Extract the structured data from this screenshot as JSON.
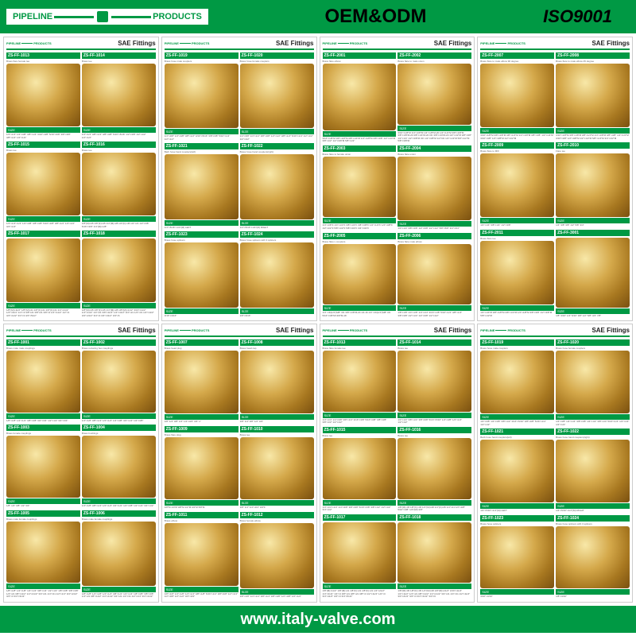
{
  "header": {
    "logo_left": "PIPELINE",
    "logo_right": "PRODUCTS",
    "center": "OEM&ODM",
    "right": "ISO9001"
  },
  "footer": {
    "url": "www.italy-valve.com"
  },
  "panel_title": "SAE Fittings",
  "panel_logo_left": "PIPELINE",
  "panel_logo_right": "PRODUCTS",
  "size_label": "SIZE",
  "colors": {
    "brand": "#009944",
    "brass_light": "#f8e8a8",
    "brass_mid": "#d4a84a",
    "brass_dark": "#a87820"
  },
  "panels": [
    {
      "items": [
        {
          "sku": "ZS-FF-1013",
          "desc": "Brass flare female tee",
          "sizes": "1/4\"×1/4\" 1/4\"×3/8\" 3/8\"×1/4\" 3/16\"×3/8\" 5/16\"×3/8\" 3/8\"×3/8\" 3/8\"×1/2\" 1/2\"×1/2\""
        },
        {
          "sku": "ZS-FF-1014",
          "desc": "Brass tee",
          "sizes": "1/4\"×1/4\" 3/8\"×1/4\" 3/8\"×3/8\" 5/16\"×5/16\" 1/2\"×3/8\" 1/2\"×1/2\" 1/2\"×1/2\""
        },
        {
          "sku": "ZS-FF-1015",
          "desc": "Brass tee",
          "sizes": "1/4\"×1/4\"×1/4\" 1/4\"×3/8\" 3/8\"×3/8\" 5/16\"×3/8\" 3/8\"×1/2\" 1/2\"×1/2\" 3/4\"×1/2\""
        },
        {
          "sku": "ZS-FF-1016",
          "desc": "Brass tee",
          "sizes": "1/8\"(M)×45 1/8\"(F)×45 1/4\"(M)×28 1/4\"(F)×45 1/4\"×21 1/2\"×3/8\" 5/16\"×3/8\" 1/4\"(M)×1/8\""
        },
        {
          "sku": "ZS-FF-1017",
          "desc": "",
          "sizes": "1/8\"(M)×11/2\" 1/8\"(M)×21 1/8\"(F)×21 1/8\"(F)×21 1/4\"×21/2\" 1/4\"×31/4\" 1/4\"×3 3/8\"×21 3/8\"×21 3/8\"×3 1/2\"×11/2\" 1/2\"×3 3/4\"×11/2\" 3/4\"×3 3/4\"×51/2\""
        },
        {
          "sku": "ZS-FF-1018",
          "desc": "",
          "sizes": "1/8\"(M)×45 1/8\"(F)×45 1/4\"(M)×28 1/8\"(M)×21/2\" 3/16\"×11/2\" 1/4\"×11/2\" 1/4\"×21 3/8\"×11/2\" 1/4\"×41/2\" 3/4\"×21 1/4\"×31 1/2\"×11/2\" 3/4\"×21/2\" 3/4\"×3 3/4\"×31/2\" 3/4\"×6"
        }
      ]
    },
    {
      "items": [
        {
          "sku": "ZS-FF-1019",
          "desc": "Brass hose male couplers",
          "sizes": "1/4\"×3/8\" 1/4\"×3/8\" 3/8\"×1/2\" 3/16\"×5/16\" 3/8\"×3/8\" 5/16\"×1/4\" 1/2\"×1/2\""
        },
        {
          "sku": "ZS-FF-1020",
          "desc": "Brass hose female couplers",
          "sizes": "1/4\"×3/8\" 1/4\"×1/4\" 3/8\"×3/8\" 1/4\"×1/2\" 3/8\"×1/4\" 5/16\"×1/4\" 1/2\"×1/2\" 1/2\"×1/2\""
        },
        {
          "sku": "ZS-FF-1021",
          "desc": "Barb hose hand couplers(left)",
          "sizes": "1/4\"×5/16\"×1/4\"(M) LEFT"
        },
        {
          "sku": "ZS-FF-1022",
          "desc": "Brass hose hand couplers(right)",
          "sizes": "1/4\"×5/16\"×1/4\"(M) RIGHT"
        },
        {
          "sku": "ZS-FF-1023",
          "desc": "Brass hose splicers",
          "sizes": "3/16\"×3/16\""
        },
        {
          "sku": "ZS-FF-1024",
          "desc": "Brass hose splicers with 3 splicers",
          "sizes": "1/8\"×3/16\""
        }
      ]
    },
    {
      "items": [
        {
          "sku": "ZS-FF-2001",
          "desc": "Brass flare elbow",
          "sizes": "3/16\"×1/8\"M 3/8\"×1/8\"M 3/8\"×1/4\"M 1/4\"×1/8\"M 3/8\"×3/8\" 1/2\"×1/4\"M 3/8\"×1/2\" 1/2\"×3/8\"M 5/8\"×1/2\""
        },
        {
          "sku": "ZS-FF-2002",
          "desc": "Brass flare to male union",
          "sizes": "3/16\"×1/8\"M 1/4\"×1/8\"M 1/4\"×1/8\"M-20 1/4\"×1/4\"M 3/8\"×1/8\"M 3/8\"×1/8\"M-20 3/8\"×1/4\"M-20 OK 3/8\"×1/4\"M-20 1/2\"×1/2\"M 3/8\"×3/8\" 1/2\"×1/4\" 1/2\"×3/8\"M OK 1/2\"×3/8\"M 1/2\"CD 1/2\"×1/2\"M 5/8\"×1/2\"M 5/8\"×3/8\"M"
        },
        {
          "sku": "ZS-FF-2003",
          "desc": "Brass flare to female union",
          "sizes": "1/4\"×1/8\"F 1/4\"×1/4\"F 3/8\"×1/4\"F 3/8\"×3/8\"F 1/2\"×1/4\"F 1/2\"×3/8\"F 1/2\"×1/2\"F 5/8\"×1/2\"F 5/8\"×3/4\"F 3/4\"×3/4\"F"
        },
        {
          "sku": "ZS-FF-2004",
          "desc": "Brass flare union",
          "sizes": "1/4\"×1/4\" 3/8\"×3/8\" 1/2\"×3/8\" 1/2\"×1/2\" 5/8\"×5/8\" 3/4\"×3/4\""
        },
        {
          "sku": "ZS-FF-2005",
          "desc": "Brass flare L couplers",
          "sizes": "1/4\" CD(1/4\")M8\" OK 3/8\"×1/8\"M-20 1/4.16 1/4\" CD(1/4\")M8\" OK 5/16\"×3/8\"M×3/8\"M-18"
        },
        {
          "sku": "ZS-FF-2006",
          "desc": "Brass flare male elbow",
          "sizes": "1/8\"×1/8\" 1/4\"×1/8\" 1/4\"×1/4\" 3/16\"×1/8\" 5/16\"×1/4\" 3/8\"×1/4\" 3/8\"×3/8\" 1/2\"×1/4\" 1/2\"×3/8\" 1/2\"×1/2\""
        }
      ]
    },
    {
      "items": [
        {
          "sku": "ZS-FF-2007",
          "desc": "Brass flare to male elbow 90 degree",
          "sizes": "3/16\"×1/8\"M 3/8\"×1/8\"M 3/8\"×1/4\"M 1/4\"×1/8\"M 3/8\"×3/8\" 1/2\"×1/4\"M 3/16\"×3/8\" 1/2\"×3/8\"M 1/2\"×1/2\"M"
        },
        {
          "sku": "ZS-FF-2008",
          "desc": "Brass flare to male elbow 45 degree",
          "sizes": "3/16\"×1/8\"M 3/8\"×1/8\"M 3/8\"×1/4\"M 1/4\"×1/8\"M 3/8\"×3/8\" 1/2\"×1/4\"M 3/16\"×3/8\" 1/2\"×3/8\"M 1/2\"×1/2\"M 5/8\"×1/2\"M 3/4\"×1/2\"M"
        },
        {
          "sku": "ZS-FF-2009",
          "desc": "Brass flare to M/F",
          "sizes": "1/4\"×1/4\" 3/8\"×1/4\" 1/2\"×3/8\""
        },
        {
          "sku": "ZS-FF-2010",
          "desc": "Flare tee",
          "sizes": "1/4\" 3/8\" 3/8\" 1/2\" 5/8\" 3/4\""
        },
        {
          "sku": "ZS-FF-2011",
          "desc": "Brass flare tee",
          "sizes": "1/4\"×1/4\"M 3/8\"×1/8\"M 3/8\"×1/4\"M 1/4\"×1/8\"M 3/8\"×3/8\" 1/2\"×3/8\"M 5/8\"×1/2\"M"
        },
        {
          "sku": "ZS-FF-3001",
          "desc": "",
          "sizes": "1/8\" 3/16\" 1/4\" 5/16\" 3/8\" 1/2\" 5/8\" 3/4\" 7/8\""
        }
      ]
    },
    {
      "items": [
        {
          "sku": "ZS-FF-1001",
          "desc": "Brass male male couplings",
          "sizes": "1/8\"×1/8\" 1/4\"×1/4\" 3/8\"×3/8\" 3/4\"×3/4\" 1/2\"×1/2\" 3/4\"×3/4\""
        },
        {
          "sku": "ZS-FF-1002",
          "desc": "Brass reducing hex couplings",
          "sizes": "1/4\"×1/8\" 3/8\"×1/4\" 1/2\"×1/4\" 1/2\"×3/8\" 3/4\"×1/2\" 1/4\"×3/8\""
        },
        {
          "sku": "ZS-FF-1003",
          "desc": "Brass female couplings",
          "sizes": "1/8\" 1/4\" 3/8\" 1/2\" 3/4\""
        },
        {
          "sku": "ZS-FF-1004",
          "desc": "Brass bushings",
          "sizes": "1/4\"×1/8\" 3/8\"×1/4\" 1/2\"×1/4\" 3/4\"×1/2\" 1/2\"×3/8\" 1/2\"×1/4\" 3/4\"×1/2\""
        },
        {
          "sku": "ZS-FF-1005",
          "desc": "Brass male female couplings",
          "sizes": "1/8\"×1/8\" 1/4\"×1/8\" 1/4\"×1/4\" 3/8\"×1/4\" 1/2\"×1/4\" 1/8\"×3/8\" 3/8\"×3/8\" 1/4\"×21 3/8\"×11/2\" 1/4\"×41/2\" 3/4\"×21 1/4\"×31 1/2\"×1/4\" 3/4\"×21/2\" 3/4\"×3 3/4\"×31/2\""
        },
        {
          "sku": "ZS-FF-1006",
          "desc": "Brass male female couplings",
          "sizes": "1/8\"×1/8\" 1/4\"×1/8\" 1/4\"×1/4\" 3/8\"×1/4\" 1/2\"×1/4\" 1/8\"×3/8\" 3/8\"×3/8\" 1/4\"×21 3/8\"×11/2\" 1/4\"×41/2\" 3/4\"×21 1/4\"×31 1/2\"×1/4\" 3/4\"×21/2\""
        }
      ]
    },
    {
      "items": [
        {
          "sku": "ZS-FF-1007",
          "desc": "Brass head plug",
          "sizes": "1/8\" 1/4\" 3/8\" 1/2\" 1/4\"×3/4\" 3/4\" 1\""
        },
        {
          "sku": "ZS-FF-1008",
          "desc": "Brass head cap",
          "sizes": "1/8\" 1/4\" 3/8\" 1/2\" 3/4\""
        },
        {
          "sku": "ZS-FF-1009",
          "desc": "Brass flare plug",
          "sizes": "1/8\"M 1/4\"M 3/8\"M 1/2\"M 3/4\"M 5/8\"M"
        },
        {
          "sku": "ZS-FF-1010",
          "desc": "Brass tee",
          "sizes": "1/8\" 1/4\" 1/4\"×3/4\" 3/4\"F"
        },
        {
          "sku": "ZS-FF-1011",
          "desc": "Brass elbow",
          "sizes": "1/8\"×1/8\" 1/4\"×1/8\" 1/4\"×1/4\" 3/8\"×1/8\" 5/16\"×1/4\" 3/8\"×3/8\" 1/2\"×1/4\" 1/2\"×3/8\" 1/2\"×1/2\" 3/4\"×3/4\""
        },
        {
          "sku": "ZS-FF-1012",
          "desc": "Brass female elbow",
          "sizes": "1/8\"×1/8\" 1/4\"×1/4\" 3/8\"×1/4\" 3/8\"×3/8\" 1/2\"×3/8\" 1/2\"×1/2\""
        }
      ]
    },
    {
      "items": [
        {
          "sku": "ZS-FF-1013",
          "desc": "Brass flare female tee",
          "sizes": "1/4\"×1/4\" 1/4\"×3/8\" 3/8\"×1/4\" 3/16\"×3/8\" 5/16\"×3/8\" 3/8\"×3/8\" 3/8\"×1/2\" 1/2\"×1/2\""
        },
        {
          "sku": "ZS-FF-1014",
          "desc": "Brass tee",
          "sizes": "1/4\"×1/4\" 3/8\"×1/4\" 3/8\"×3/8\" 5/16\"×5/16\" 1/2\"×3/8\" 1/2\"×1/2\" 1/2\"×1/2\""
        },
        {
          "sku": "ZS-FF-1015",
          "desc": "Brass tee",
          "sizes": "1/4\"×1/4\"×1/4\" 1/4\"×3/8\" 3/8\"×3/8\" 5/16\"×3/8\" 3/8\"×1/2\" 1/2\"×1/2\" 3/4\"×1/2\""
        },
        {
          "sku": "ZS-FF-1016",
          "desc": "Brass tee",
          "sizes": "1/8\"(M)×45 1/8\"(F)×45 1/4\"(M)×28 1/4\"(F)×45 1/4\"×21 1/2\"×3/8\" 5/16\"×3/8\" 1/4\"(M)×1/8\""
        },
        {
          "sku": "ZS-FF-1017",
          "desc": "",
          "sizes": "1/8\"(M)×11/2\" 1/8\"(M)×21 1/8\"(F)×21 1/8\"(F)×21 1/4\"×21/2\" 1/4\"×31/4\" 1/4\"×3 3/8\"×21 3/8\"×21 3/8\"×3 1/2\"×11/2\" 1/2\"×3 3/4\"×11/2\" 3/4\"×3 3/4\"×51/2\""
        },
        {
          "sku": "ZS-FF-1018",
          "desc": "",
          "sizes": "1/8\"(M)×45 1/8\"(F)×45 1/4\"(M)×28 1/8\"(M)×21/2\" 3/16\"×11/2\" 1/4\"×11/2\" 1/4\"×21 3/8\"×11/2\" 1/4\"×41/2\" 3/4\"×21 1/4\"×31 1/2\"×11/2\" 3/4\"×21/2\" 3/4\"×3 3/4\"×31/2\" 3/4\"×6"
        }
      ]
    },
    {
      "items": [
        {
          "sku": "ZS-FF-1019",
          "desc": "Brass hose male couplers",
          "sizes": "1/4\"×3/8\" 1/4\"×3/8\" 3/8\"×1/2\" 3/16\"×5/16\" 3/8\"×3/8\" 5/16\"×1/4\" 1/2\"×1/2\""
        },
        {
          "sku": "ZS-FF-1020",
          "desc": "Brass hose female couplers",
          "sizes": "1/4\"×3/8\" 1/4\"×1/4\" 3/8\"×3/8\" 1/4\"×1/2\" 3/8\"×1/4\" 5/16\"×1/4\" 1/2\"×1/2\" 1/2\"×1/2\""
        },
        {
          "sku": "ZS-FF-1021",
          "desc": "Barb hose hand couplers(left)",
          "sizes": "1/4\"×5/16\"×1/4\"(M) LEFT"
        },
        {
          "sku": "ZS-FF-1022",
          "desc": "Brass hose hand couplers(right)",
          "sizes": "1/4\"×5/16\"×1/4\"(M) RIGHT"
        },
        {
          "sku": "ZS-FF-1023",
          "desc": "Brass hose splicers",
          "sizes": "3/16\"×3/16\""
        },
        {
          "sku": "ZS-FF-1024",
          "desc": "Brass hose splicers with 3 splicers",
          "sizes": "1/8\"×3/16\""
        }
      ]
    }
  ]
}
